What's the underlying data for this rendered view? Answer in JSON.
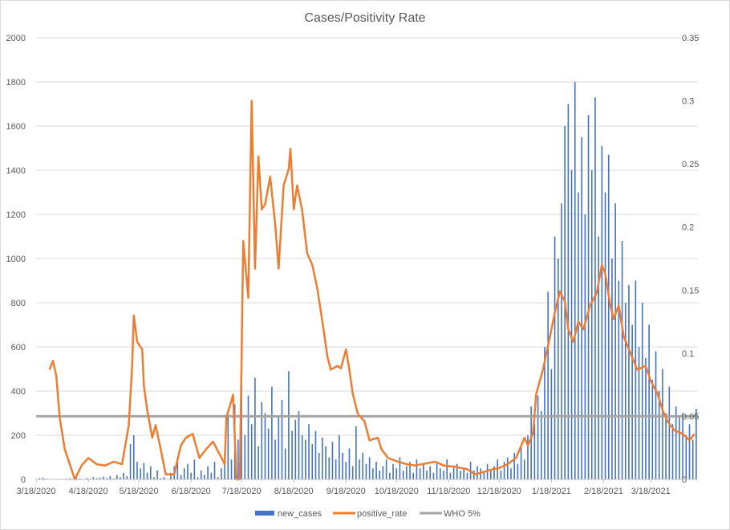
{
  "chart_data": {
    "type": "bar+line",
    "title": "Cases/Positivity Rate",
    "x_unit": "days since 3/18/2020",
    "x_ticks": [
      {
        "day": 0,
        "label": "3/18/2020"
      },
      {
        "day": 31,
        "label": "4/18/2020"
      },
      {
        "day": 61,
        "label": "5/18/2020"
      },
      {
        "day": 92,
        "label": "6/18/2020"
      },
      {
        "day": 122,
        "label": "7/18/2020"
      },
      {
        "day": 153,
        "label": "8/18/2020"
      },
      {
        "day": 184,
        "label": "9/18/2020"
      },
      {
        "day": 214,
        "label": "10/18/2020"
      },
      {
        "day": 245,
        "label": "11/18/2020"
      },
      {
        "day": 275,
        "label": "12/18/2020"
      },
      {
        "day": 306,
        "label": "1/18/2021"
      },
      {
        "day": 337,
        "label": "2/18/2021"
      },
      {
        "day": 365,
        "label": "3/18/2021"
      }
    ],
    "xlim": [
      0,
      393
    ],
    "y_left": {
      "ylim": [
        0,
        2000
      ],
      "ticks": [
        "0",
        "200",
        "400",
        "600",
        "800",
        "1000",
        "1200",
        "1400",
        "1600",
        "1800",
        "2000"
      ],
      "tick_values": [
        0,
        200,
        400,
        600,
        800,
        1000,
        1200,
        1400,
        1600,
        1800,
        2000
      ]
    },
    "y_right": {
      "ylim": [
        0,
        0.35
      ],
      "ticks": [
        "0",
        "0.05",
        "0.1",
        "0.15",
        "0.2",
        "0.25",
        "0.3",
        "0.35"
      ],
      "tick_values": [
        0,
        0.05,
        0.1,
        0.15,
        0.2,
        0.25,
        0.3,
        0.35
      ]
    },
    "grid": true,
    "legend_position": "bottom",
    "series": [
      {
        "name": "new_cases",
        "type": "bar",
        "axis": "left",
        "color": "#4472c4",
        "x_step_days": 2,
        "values": [
          0,
          5,
          8,
          3,
          0,
          2,
          0,
          0,
          0,
          3,
          5,
          2,
          8,
          4,
          2,
          6,
          3,
          10,
          5,
          8,
          12,
          6,
          15,
          4,
          20,
          10,
          30,
          15,
          160,
          200,
          80,
          50,
          75,
          30,
          60,
          10,
          40,
          5,
          10,
          0,
          30,
          60,
          100,
          20,
          50,
          70,
          30,
          90,
          10,
          40,
          20,
          60,
          30,
          80,
          10,
          50,
          120,
          300,
          90,
          340,
          180,
          470,
          200,
          380,
          250,
          460,
          150,
          350,
          300,
          230,
          420,
          180,
          290,
          360,
          140,
          490,
          220,
          270,
          310,
          200,
          180,
          250,
          160,
          220,
          120,
          190,
          150,
          100,
          170,
          90,
          200,
          120,
          80,
          140,
          60,
          240,
          90,
          120,
          70,
          100,
          50,
          80,
          40,
          60,
          90,
          30,
          70,
          50,
          100,
          40,
          60,
          80,
          30,
          90,
          50,
          70,
          40,
          60,
          30,
          80,
          50,
          40,
          90,
          30,
          60,
          70,
          40,
          50,
          30,
          80,
          40,
          60,
          50,
          30,
          70,
          40,
          60,
          90,
          40,
          80,
          100,
          50,
          120,
          70,
          150,
          90,
          200,
          330,
          250,
          380,
          310,
          600,
          850,
          500,
          1100,
          1000,
          1250,
          1600,
          1700,
          1400,
          1800,
          1300,
          1550,
          1200,
          1650,
          1400,
          1730,
          1100,
          1510,
          1300,
          1470,
          1000,
          1250,
          900,
          1080,
          800,
          880,
          700,
          900,
          600,
          800,
          550,
          700,
          450,
          580,
          400,
          500,
          300,
          420,
          250,
          330,
          280,
          300,
          200,
          250,
          180,
          320,
          150,
          200,
          170
        ]
      },
      {
        "name": "positive_rate",
        "type": "line",
        "axis": "right",
        "color": "#ed7d31",
        "points": [
          [
            8,
            0.087
          ],
          [
            10,
            0.094
          ],
          [
            12,
            0.082
          ],
          [
            14,
            0.049
          ],
          [
            17,
            0.024
          ],
          [
            21,
            0.008
          ],
          [
            23,
            0
          ],
          [
            27,
            0.011
          ],
          [
            31,
            0.017
          ],
          [
            36,
            0.012
          ],
          [
            41,
            0.011
          ],
          [
            46,
            0.014
          ],
          [
            51,
            0.012
          ],
          [
            55,
            0.043
          ],
          [
            57,
            0.09
          ],
          [
            58,
            0.13
          ],
          [
            60,
            0.109
          ],
          [
            63,
            0.103
          ],
          [
            64,
            0.074
          ],
          [
            66,
            0.055
          ],
          [
            69,
            0.033
          ],
          [
            71,
            0.043
          ],
          [
            74,
            0.024
          ],
          [
            77,
            0.004
          ],
          [
            82,
            0.004
          ],
          [
            86,
            0.027
          ],
          [
            89,
            0.033
          ],
          [
            93,
            0.036
          ],
          [
            97,
            0.017
          ],
          [
            101,
            0.024
          ],
          [
            105,
            0.03
          ],
          [
            109,
            0.02
          ],
          [
            112,
            0.012
          ],
          [
            113,
            0.049
          ],
          [
            117,
            0.067
          ],
          [
            119,
            0
          ],
          [
            121,
            0
          ],
          [
            123,
            0.189
          ],
          [
            126,
            0.144
          ],
          [
            128,
            0.3
          ],
          [
            130,
            0.167
          ],
          [
            132,
            0.256
          ],
          [
            134,
            0.214
          ],
          [
            136,
            0.218
          ],
          [
            139,
            0.24
          ],
          [
            142,
            0.202
          ],
          [
            144,
            0.167
          ],
          [
            147,
            0.233
          ],
          [
            150,
            0.246
          ],
          [
            151,
            0.262
          ],
          [
            153,
            0.214
          ],
          [
            155,
            0.233
          ],
          [
            158,
            0.213
          ],
          [
            161,
            0.179
          ],
          [
            164,
            0.17
          ],
          [
            167,
            0.151
          ],
          [
            170,
            0.125
          ],
          [
            173,
            0.097
          ],
          [
            175,
            0.087
          ],
          [
            179,
            0.09
          ],
          [
            181,
            0.088
          ],
          [
            184,
            0.103
          ],
          [
            186,
            0.087
          ],
          [
            188,
            0.068
          ],
          [
            191,
            0.052
          ],
          [
            195,
            0.046
          ],
          [
            198,
            0.031
          ],
          [
            203,
            0.033
          ],
          [
            205,
            0.024
          ],
          [
            209,
            0.017
          ],
          [
            215,
            0.014
          ],
          [
            220,
            0.012
          ],
          [
            225,
            0.011
          ],
          [
            229,
            0.012
          ],
          [
            237,
            0.014
          ],
          [
            242,
            0.011
          ],
          [
            249,
            0.01
          ],
          [
            256,
            0.008
          ],
          [
            261,
            0.004
          ],
          [
            266,
            0.006
          ],
          [
            271,
            0.008
          ],
          [
            275,
            0.009
          ],
          [
            280,
            0.012
          ],
          [
            285,
            0.017
          ],
          [
            290,
            0.033
          ],
          [
            292,
            0.027
          ],
          [
            295,
            0.036
          ],
          [
            297,
            0.068
          ],
          [
            301,
            0.087
          ],
          [
            304,
            0.106
          ],
          [
            308,
            0.132
          ],
          [
            311,
            0.149
          ],
          [
            314,
            0.141
          ],
          [
            316,
            0.119
          ],
          [
            319,
            0.109
          ],
          [
            322,
            0.125
          ],
          [
            325,
            0.119
          ],
          [
            329,
            0.138
          ],
          [
            333,
            0.148
          ],
          [
            336,
            0.17
          ],
          [
            338,
            0.163
          ],
          [
            341,
            0.138
          ],
          [
            343,
            0.127
          ],
          [
            346,
            0.138
          ],
          [
            349,
            0.113
          ],
          [
            353,
            0.1
          ],
          [
            357,
            0.087
          ],
          [
            362,
            0.09
          ],
          [
            365,
            0.078
          ],
          [
            369,
            0.068
          ],
          [
            372,
            0.055
          ],
          [
            375,
            0.046
          ],
          [
            379,
            0.039
          ],
          [
            384,
            0.036
          ],
          [
            388,
            0.031
          ],
          [
            391,
            0.036
          ]
        ]
      },
      {
        "name": "WHO 5%",
        "type": "line",
        "axis": "right",
        "color": "#a5a5a5",
        "value": 0.05
      }
    ]
  }
}
